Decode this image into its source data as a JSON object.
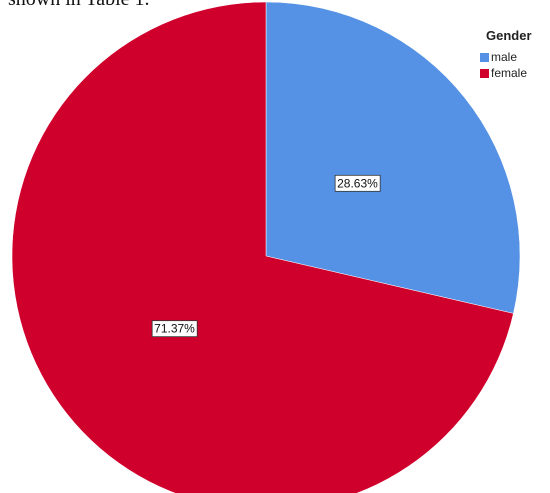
{
  "caption_fragment": "shown in Table 1.",
  "chart_data": {
    "type": "pie",
    "categories": [
      "male",
      "female"
    ],
    "values": [
      28.63,
      71.37
    ],
    "data_labels": [
      "28.63%",
      "71.37%"
    ],
    "legend_title": "Gender",
    "legend_position": "top-right",
    "colors": [
      "#5592e5",
      "#d0002c"
    ],
    "start_angle_deg": 0,
    "direction": "clockwise"
  }
}
